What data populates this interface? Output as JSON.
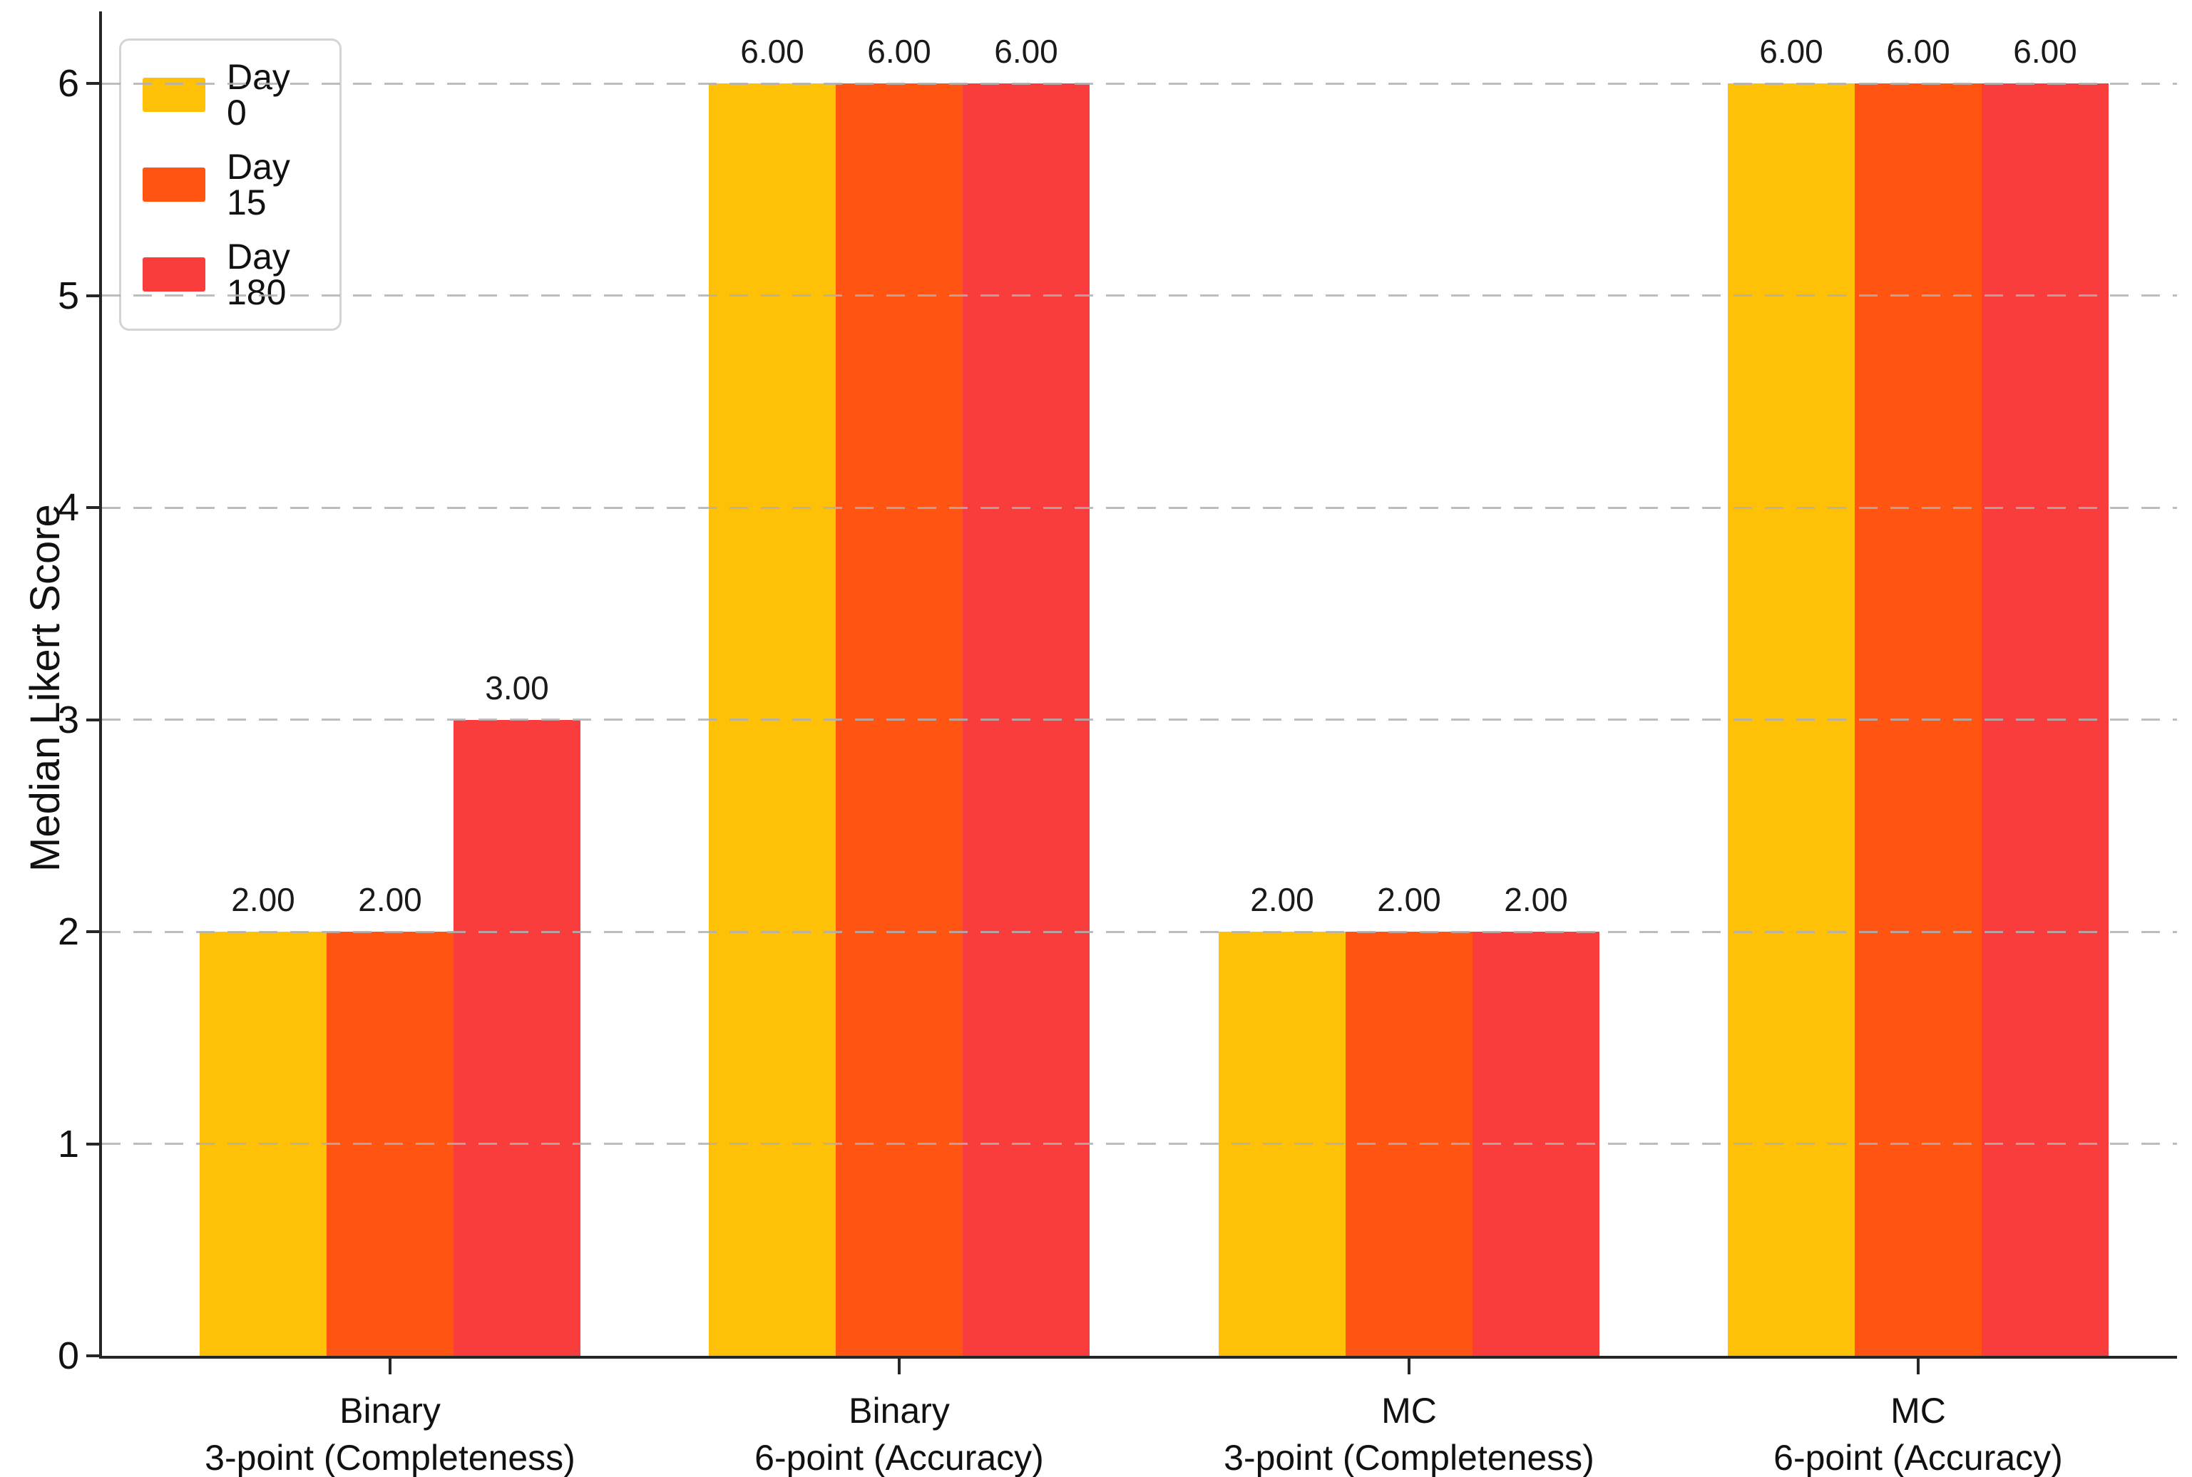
{
  "chart_data": {
    "type": "bar",
    "title": "",
    "xlabel": "",
    "ylabel": "Median Likert Score",
    "categories": [
      "Binary\n3-point (Completeness)",
      "Binary\n6-point (Accuracy)",
      "MC\n3-point (Completeness)",
      "MC\n6-point (Accuracy)"
    ],
    "series": [
      {
        "name": "Day 0",
        "color": "#FFC107",
        "values": [
          2,
          6,
          2,
          6
        ],
        "value_labels": [
          "2.00",
          "6.00",
          "2.00",
          "6.00"
        ]
      },
      {
        "name": "Day 15",
        "color": "#FF5412",
        "values": [
          2,
          6,
          2,
          6
        ],
        "value_labels": [
          "2.00",
          "6.00",
          "2.00",
          "6.00"
        ]
      },
      {
        "name": "Day 180",
        "color": "#F93C3C",
        "values": [
          3,
          6,
          2,
          6
        ],
        "value_labels": [
          "3.00",
          "6.00",
          "2.00",
          "6.00"
        ]
      }
    ],
    "y_ticks": [
      0,
      1,
      2,
      3,
      4,
      5,
      6
    ],
    "y_tick_labels": [
      "0",
      "1",
      "2",
      "3",
      "4",
      "5",
      "6"
    ],
    "ylim": [
      0,
      6.34
    ],
    "grid": "dashed-horizontal-above-bars",
    "legend_position": "upper-left",
    "axis_color": "#262626",
    "grid_color": "#c9c9c9"
  }
}
